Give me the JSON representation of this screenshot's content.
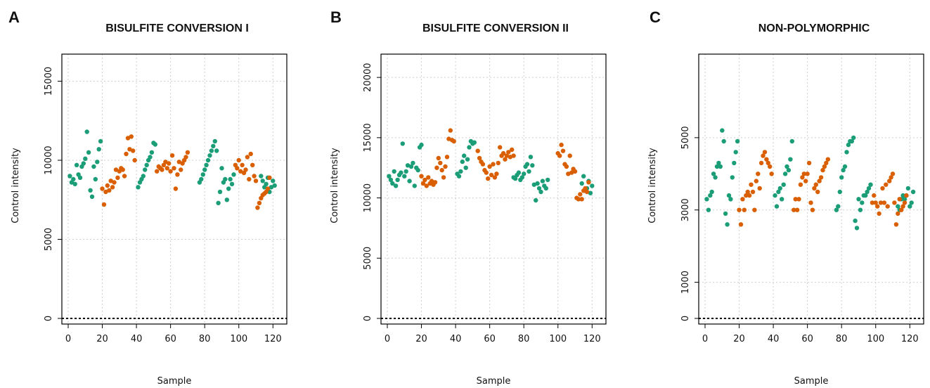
{
  "figure": {
    "colors": {
      "green": "#1b9e77",
      "orange": "#d95f02",
      "grid": "#cfcfcf",
      "axis": "#000000"
    }
  },
  "chart_data": [
    {
      "type": "scatter",
      "panel_label": "A",
      "title": "BISULFITE CONVERSION I",
      "xlabel": "Sample",
      "ylabel": "Control intensity",
      "xlim": [
        0,
        124
      ],
      "ylim": [
        0,
        16000
      ],
      "xticks": [
        0,
        20,
        40,
        60,
        80,
        100,
        120
      ],
      "yticks": [
        0,
        5000,
        10000,
        15000
      ],
      "grid": true,
      "zero_line": true,
      "series": [
        {
          "color": "green",
          "segments": [
            {
              "x0": 1,
              "y": [
                9000,
                8600,
                8800,
                8500,
                9700,
                9100,
                8900,
                9600,
                9800,
                10100,
                11800,
                10500,
                8100,
                7700,
                9600,
                8800,
                9900,
                10700,
                11200
              ]
            },
            {
              "x0": 41,
              "y": [
                8300,
                8600,
                8800,
                9000,
                9400,
                9700,
                10000,
                10200,
                10500,
                11100,
                11000
              ]
            },
            {
              "x0": 77,
              "y": [
                8600,
                8800,
                9100,
                9400,
                9700,
                10000,
                10300,
                10600,
                10900,
                11200,
                10600,
                7300,
                8000,
                9500,
                8600,
                8800,
                7500,
                8200,
                8800,
                8500,
                9100
              ]
            },
            {
              "x0": 113,
              "y": [
                9000,
                8700,
                8300,
                8500,
                8900,
                8000,
                8300,
                8700,
                8400
              ]
            }
          ]
        },
        {
          "color": "orange",
          "segments": [
            {
              "x0": 20,
              "y": [
                8200,
                7200,
                8000,
                8400,
                8100,
                8700,
                8300,
                8600,
                9400,
                8900,
                9300,
                9500,
                9400,
                9000,
                10400,
                11400,
                10700,
                11500,
                10600,
                10000
              ]
            },
            {
              "x0": 52,
              "y": [
                9300,
                9600,
                9500,
                9400,
                9700,
                9900,
                9500,
                9800,
                9300,
                10300,
                9500,
                8200,
                9100,
                9900,
                9400,
                9800,
                10000,
                10200,
                10500
              ]
            },
            {
              "x0": 98,
              "y": [
                9700,
                9500,
                10000,
                9300,
                9700,
                9200,
                9400,
                10200,
                8800,
                10400,
                9700,
                9000,
                8700,
                7000,
                7300,
                7600,
                7800,
                7900,
                8000,
                8200,
                8900
              ]
            }
          ]
        }
      ]
    },
    {
      "type": "scatter",
      "panel_label": "B",
      "title": "BISULFITE CONVERSION II",
      "xlabel": "Sample",
      "ylabel": "Control intensity",
      "xlim": [
        0,
        124
      ],
      "ylim": [
        0,
        21000
      ],
      "xticks": [
        0,
        20,
        40,
        60,
        80,
        100,
        120
      ],
      "yticks": [
        0,
        5000,
        10000,
        15000,
        20000
      ],
      "grid": true,
      "zero_line": true,
      "series": [
        {
          "color": "green",
          "segments": [
            {
              "x0": 1,
              "y": [
                11800,
                11500,
                11200,
                12200,
                11000,
                11500,
                11900,
                12100,
                14500,
                11800,
                12200,
                12700,
                11400,
                12600,
                12900,
                11000,
                12500,
                12300,
                14200,
                14400
              ]
            },
            {
              "x0": 41,
              "y": [
                12000,
                11800,
                12200,
                13000,
                13500,
                12500,
                13200,
                14200,
                14700,
                14500,
                14600
              ]
            },
            {
              "x0": 74,
              "y": [
                11700,
                11600,
                11900,
                12100,
                11500,
                11700,
                12000,
                12600,
                12800,
                12200,
                13400,
                12700,
                11100,
                9800,
                11200,
                10800,
                10500,
                11400,
                11000,
                10800,
                11500
              ]
            },
            {
              "x0": 114,
              "y": [
                11200,
                11800,
                10600,
                10800,
                11400,
                10400,
                11000
              ]
            }
          ]
        },
        {
          "color": "orange",
          "segments": [
            {
              "x0": 20,
              "y": [
                11800,
                11200,
                11500,
                11000,
                11700,
                11200,
                11400,
                11100,
                11300,
                12500,
                13300,
                12900,
                12300,
                11700,
                12600,
                13400,
                14900,
                15600,
                14800,
                14700
              ]
            },
            {
              "x0": 53,
              "y": [
                13900,
                13300,
                13000,
                12800,
                12300,
                12100,
                11600,
                12600,
                11900,
                12800,
                11700,
                12000,
                12900,
                14200,
                13500,
                13700,
                13200,
                13500,
                13800,
                13400,
                14000,
                13500
              ]
            },
            {
              "x0": 100,
              "y": [
                13700,
                13500,
                14400,
                13900,
                12800,
                12600,
                12000,
                13500,
                12100,
                12400,
                12200,
                10000,
                9900,
                10300,
                9900,
                10600,
                10800,
                10500,
                11300
              ]
            }
          ]
        }
      ]
    },
    {
      "type": "scatter",
      "panel_label": "C",
      "title": "NON-POLYMORPHIC",
      "xlabel": "Sample",
      "ylabel": "Control intensity",
      "xlim": [
        0,
        124
      ],
      "ylim": [
        0,
        7000
      ],
      "xticks": [
        0,
        20,
        40,
        60,
        80,
        100,
        120
      ],
      "yticks": [
        0,
        1000,
        3000,
        5000
      ],
      "grid": true,
      "zero_line": true,
      "series": [
        {
          "color": "green",
          "segments": [
            {
              "x0": 1,
              "y": [
                3300,
                3000,
                3400,
                3500,
                4000,
                3900,
                4200,
                4300,
                4200,
                5200,
                4900,
                2900,
                2600,
                3400,
                3300,
                3900,
                4300,
                4600,
                4900
              ]
            },
            {
              "x0": 41,
              "y": [
                3400,
                3100,
                3500,
                3600,
                3300,
                3700,
                4000,
                4200,
                4100,
                4400,
                4900
              ]
            },
            {
              "x0": 77,
              "y": [
                3000,
                3100,
                3500,
                3900,
                4100,
                4200,
                4600,
                4800,
                4900,
                4900,
                5000,
                2700,
                2500,
                3300,
                3000,
                3200,
                3400,
                3400,
                3500,
                3600,
                3700
              ]
            },
            {
              "x0": 113,
              "y": [
                3100,
                3000,
                3300,
                3400,
                3300,
                3400,
                3600,
                3100,
                3200,
                3500
              ]
            }
          ]
        },
        {
          "color": "orange",
          "segments": [
            {
              "x0": 20,
              "y": [
                3000,
                2600,
                3300,
                3000,
                3400,
                3500,
                3400,
                3700,
                3500,
                3000,
                3800,
                4000,
                3600,
                4300,
                4500,
                4600,
                4400,
                4300,
                4200,
                4000
              ]
            },
            {
              "x0": 52,
              "y": [
                3000,
                3300,
                3000,
                3300,
                3700,
                3900,
                4000,
                3800,
                4000,
                4300,
                3200,
                3000,
                3600,
                3700,
                3500,
                3800,
                3900,
                4100,
                4200,
                4300,
                4400
              ]
            },
            {
              "x0": 98,
              "y": [
                3200,
                3400,
                3200,
                3100,
                2900,
                3200,
                3600,
                3200,
                3700,
                3100,
                3800,
                3900,
                4000,
                3200,
                2600,
                2900,
                3300,
                3000,
                3100,
                3200,
                3400
              ]
            }
          ]
        }
      ]
    }
  ]
}
